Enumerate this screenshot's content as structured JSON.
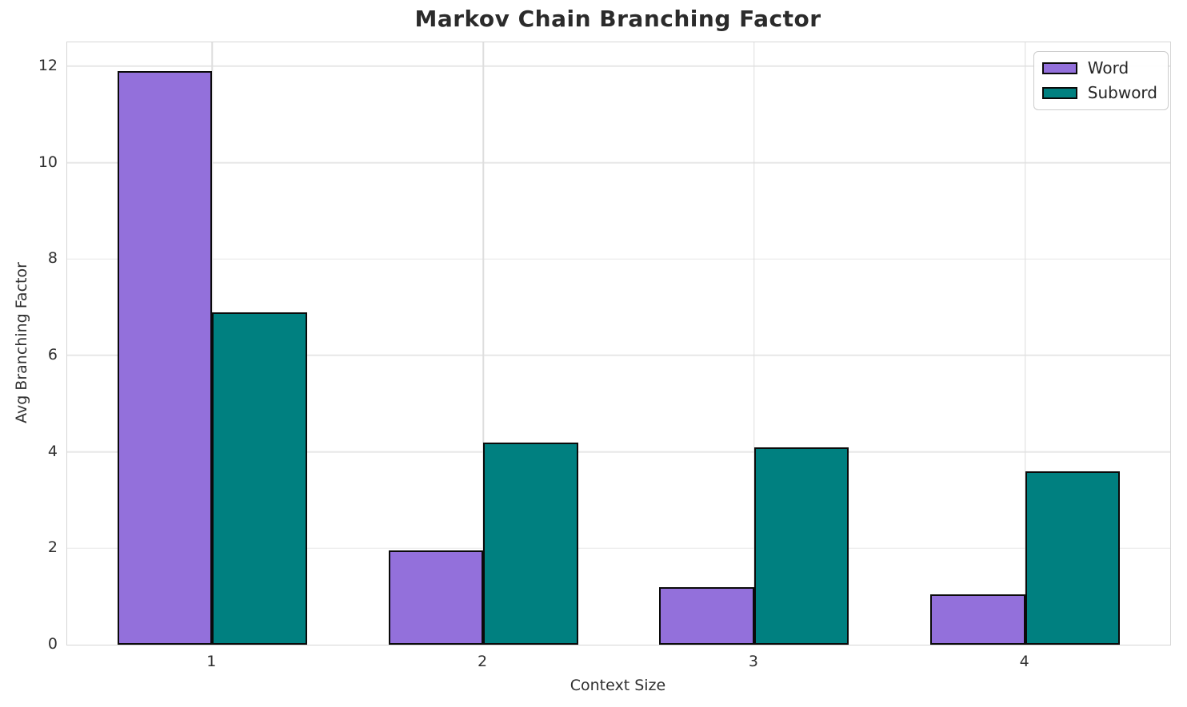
{
  "chart_data": {
    "type": "bar",
    "title": "Markov Chain Branching Factor",
    "xlabel": "Context Size",
    "ylabel": "Avg Branching Factor",
    "categories": [
      "1",
      "2",
      "3",
      "4"
    ],
    "x": [
      1,
      2,
      3,
      4
    ],
    "series": [
      {
        "name": "Word",
        "color": "#9370DB",
        "values": [
          11.9,
          1.95,
          1.2,
          1.05
        ]
      },
      {
        "name": "Subword",
        "color": "#008080",
        "values": [
          6.9,
          4.2,
          4.1,
          3.6
        ]
      }
    ],
    "bar_width": 0.35,
    "bar_edge_color": "#0a0a0a",
    "xlim": [
      0.465,
      4.535
    ],
    "ylim": [
      0,
      12.495
    ],
    "yticks": [
      0,
      2,
      4,
      6,
      8,
      10,
      12
    ],
    "xticks": [
      1,
      2,
      3,
      4
    ],
    "grid": true,
    "grid_color": "#e7e7e7",
    "spine_color": "#d6d6d6",
    "text_color": "#303030",
    "background": "#ffffff",
    "legend_position": "upper right"
  }
}
